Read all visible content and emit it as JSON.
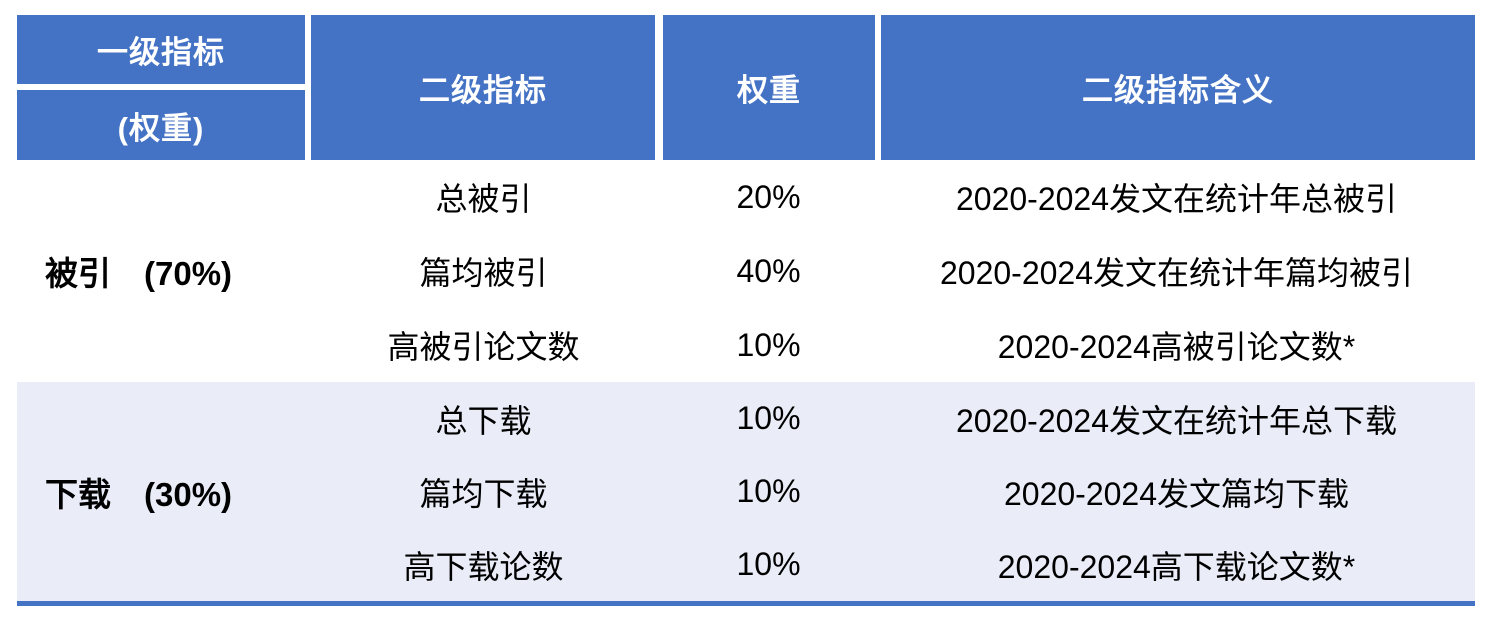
{
  "table": {
    "accent_color": "#4472C4",
    "band_color": "#EAEDF8",
    "header": {
      "col1_line1": "一级指标",
      "col1_line2": "(权重)",
      "col2": "二级指标",
      "col3": "权重",
      "col4": "二级指标含义"
    },
    "groups": [
      {
        "label": "被引　(70%)",
        "rows": [
          {
            "indicator": "总被引",
            "weight": "20%",
            "meaning": "2020-2024发文在统计年总被引"
          },
          {
            "indicator": "篇均被引",
            "weight": "40%",
            "meaning": "2020-2024发文在统计年篇均被引"
          },
          {
            "indicator": "高被引论文数",
            "weight": "10%",
            "meaning": "2020-2024高被引论文数*"
          }
        ]
      },
      {
        "label": "下载　(30%)",
        "rows": [
          {
            "indicator": "总下载",
            "weight": "10%",
            "meaning": "2020-2024发文在统计年总下载"
          },
          {
            "indicator": "篇均下载",
            "weight": "10%",
            "meaning": "2020-2024发文篇均下载"
          },
          {
            "indicator": "高下载论数",
            "weight": "10%",
            "meaning": "2020-2024高下载论文数*"
          }
        ]
      }
    ]
  }
}
